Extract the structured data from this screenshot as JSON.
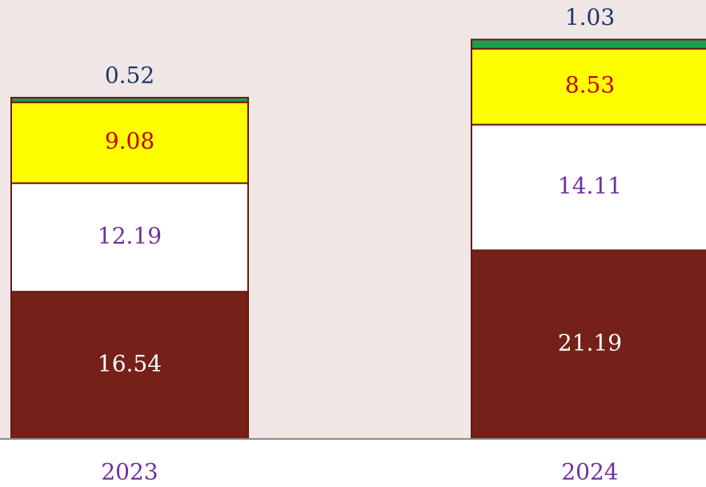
{
  "chart_data": {
    "type": "stacked_bar",
    "categories": [
      "2023",
      "2024"
    ],
    "series": [
      {
        "name": null,
        "color": "#76201a",
        "label_color": "#ffffff",
        "values": [
          16.54,
          21.19
        ]
      },
      {
        "name": null,
        "color": "#ffffff",
        "label_color": "#7030a0",
        "values": [
          12.19,
          14.11
        ]
      },
      {
        "name": null,
        "color": "#ffff00",
        "label_color": "#c00000",
        "values": [
          9.08,
          8.53
        ]
      },
      {
        "name": null,
        "color": "#1e9e50",
        "label_color": "#1f3864",
        "values": [
          0.52,
          1.03
        ]
      }
    ],
    "ylim": [
      0,
      49.3
    ]
  }
}
